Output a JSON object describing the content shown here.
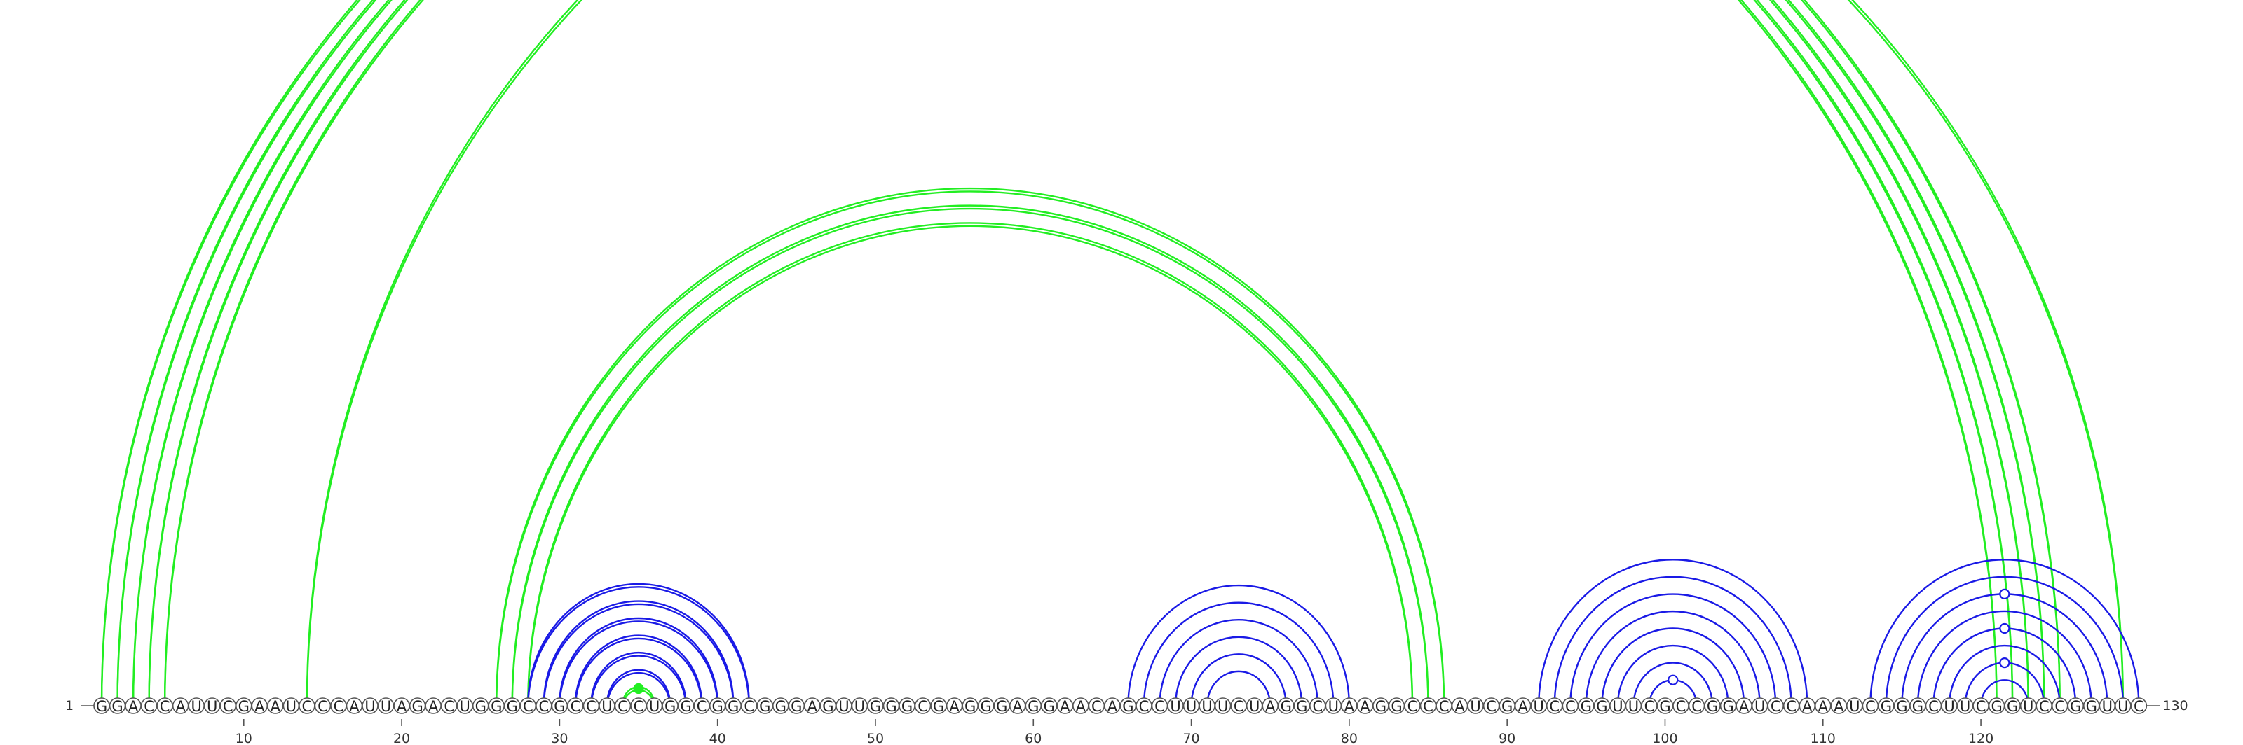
{
  "sequence": "GGACCAUUCGAAUCCCAUUAGACUGGGCCGCCUCCUGGCGGCGGGAGUUGGGCGAGGGAGGAACAGCCUUUUCUAGGCUAAGGCCCAUCGAUCCGGUUCGCCGGAUCCAAAUCGGGCUUCGGUCCGGUUC",
  "start_label": "1",
  "end_label": "130",
  "position_ticks": [
    10,
    20,
    30,
    40,
    50,
    60,
    70,
    80,
    90,
    100,
    110,
    120
  ],
  "colors": {
    "green": "#22ee22",
    "blue": "#1a1ae6"
  },
  "arc_groups": [
    {
      "color": "green",
      "stroke": "double",
      "pairs": [
        [
          1,
          121
        ],
        [
          2,
          122
        ],
        [
          3,
          123
        ],
        [
          4,
          124
        ],
        [
          5,
          125
        ]
      ]
    },
    {
      "color": "green",
      "stroke": "double",
      "pairs": [
        [
          26,
          86
        ],
        [
          27,
          85
        ],
        [
          28,
          84
        ]
      ]
    },
    {
      "color": "green",
      "stroke": "double-thin",
      "pairs": [
        [
          14,
          129
        ]
      ],
      "marker": "open"
    },
    {
      "color": "green",
      "stroke": "double",
      "pairs": [
        [
          34,
          36
        ]
      ],
      "marker": "filled"
    },
    {
      "color": "blue",
      "stroke": "double",
      "pairs": [
        [
          28,
          42
        ],
        [
          29,
          41
        ],
        [
          30,
          40
        ],
        [
          31,
          39
        ],
        [
          32,
          38
        ],
        [
          33,
          37
        ]
      ]
    },
    {
      "color": "blue",
      "stroke": "single",
      "pairs": [
        [
          66,
          80
        ],
        [
          67,
          79
        ],
        [
          68,
          78
        ],
        [
          69,
          77
        ],
        [
          70,
          76
        ],
        [
          71,
          75
        ]
      ]
    },
    {
      "color": "blue",
      "stroke": "single",
      "pairs": [
        [
          92,
          109
        ],
        [
          93,
          108
        ],
        [
          94,
          107
        ],
        [
          95,
          106
        ],
        [
          96,
          105
        ],
        [
          97,
          104
        ],
        [
          98,
          103
        ],
        [
          99,
          102
        ]
      ],
      "marker_pair": [
        99,
        102
      ]
    },
    {
      "color": "blue",
      "stroke": "single",
      "pairs": [
        [
          113,
          130
        ],
        [
          114,
          129
        ],
        [
          115,
          128
        ],
        [
          116,
          127
        ],
        [
          117,
          126
        ],
        [
          118,
          125
        ],
        [
          119,
          124
        ],
        [
          120,
          123
        ]
      ],
      "marker_pairs": [
        [
          115,
          128
        ],
        [
          117,
          126
        ],
        [
          119,
          124
        ]
      ]
    }
  ]
}
